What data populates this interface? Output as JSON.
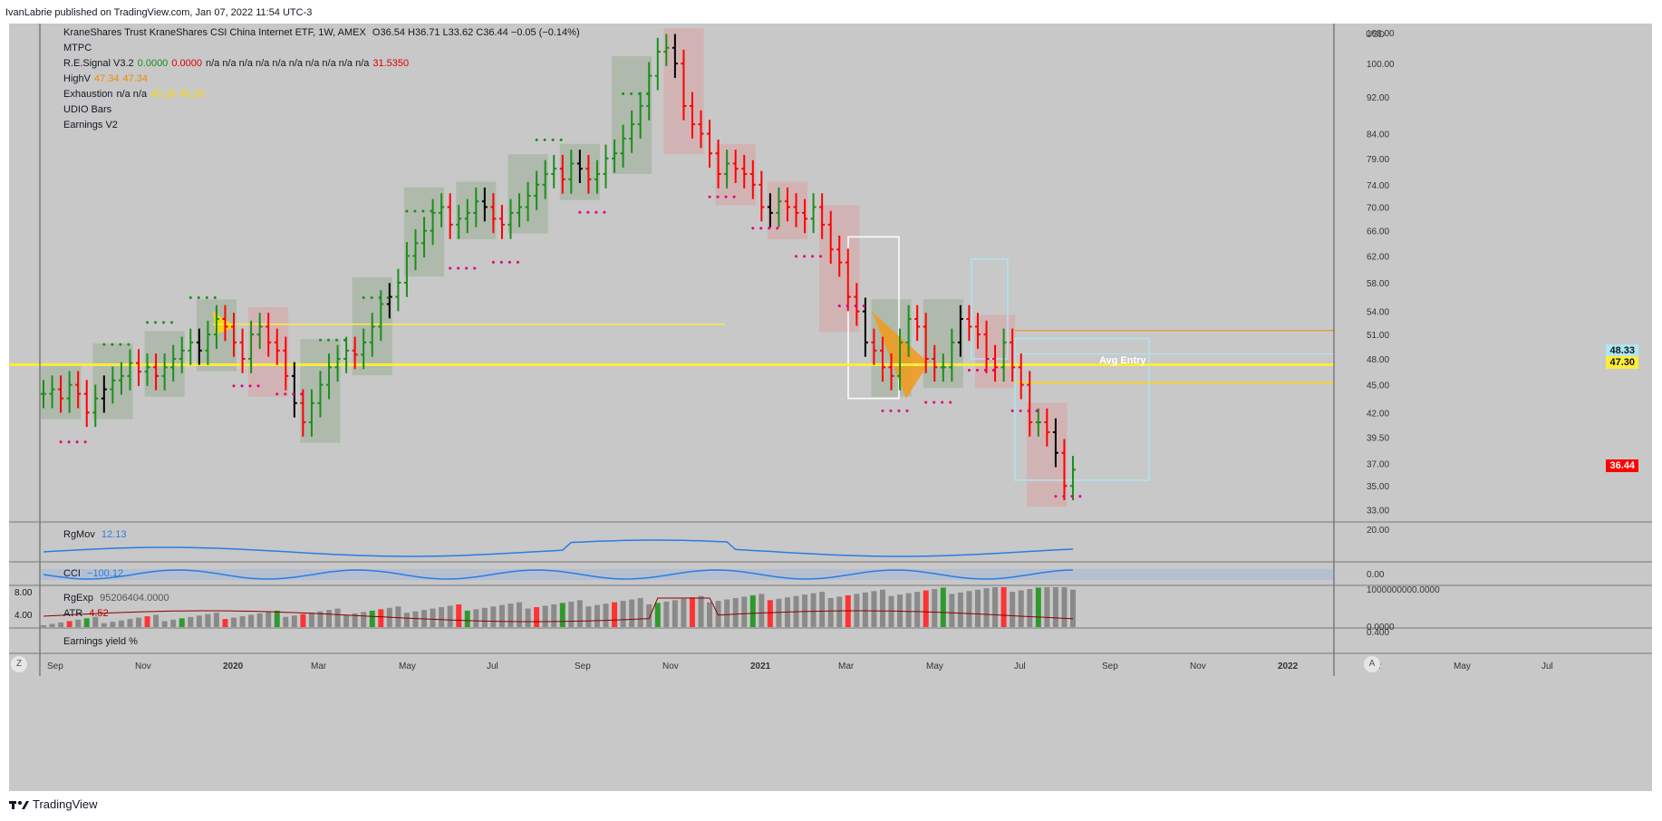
{
  "header": {
    "publisher": "IvanLabrie published on TradingView.com, Jan 07, 2022 11:54 UTC-3"
  },
  "legend": {
    "instrument": "KraneShares Trust KraneShares CSI China Internet ETF, 1W, AMEX",
    "ohlc": "O36.54  H36.71  L33.62  C36.44  −0.05 (−0.14%)",
    "indicators": [
      {
        "name": "MTPC",
        "values": []
      },
      {
        "name": "R.E.Signal V3.2",
        "values": [
          {
            "text": "0.0000",
            "color": "#1a8f1a"
          },
          {
            "text": "0.0000",
            "color": "#e00000"
          },
          {
            "text": "n/a  n/a  n/a  n/a  n/a  n/a  n/a  n/a  n/a  n/a",
            "color": "#131722"
          },
          {
            "text": "31.5350",
            "color": "#e00000"
          }
        ]
      },
      {
        "name": "HighV",
        "values": [
          {
            "text": "47.34",
            "color": "#f28a00"
          },
          {
            "text": "47.34",
            "color": "#f28a00"
          }
        ]
      },
      {
        "name": "Exhaustion",
        "values": [
          {
            "text": "n/a  n/a",
            "color": "#131722"
          },
          {
            "text": "45.26",
            "color": "#ffd800"
          },
          {
            "text": "45.26",
            "color": "#ffd800"
          }
        ]
      },
      {
        "name": "UDIO Bars",
        "values": []
      },
      {
        "name": "Earnings V2",
        "values": []
      }
    ]
  },
  "panes": {
    "rgmov": {
      "label": "RgMov",
      "value": "12.13",
      "axis": "20.00"
    },
    "cci": {
      "label": "CCI",
      "value": "−100.12",
      "axis": "0.00"
    },
    "rgexp": {
      "label": "RgExp",
      "value": "95206404.0000",
      "axis_top": "1000000000.0000",
      "axis_bottom": "0.0000",
      "left_top": "8.00",
      "left_bottom": "4.00",
      "axis_extra": "0.400"
    },
    "atr": {
      "label": "ATR",
      "value": "4.52"
    },
    "earnings": {
      "label": "Earnings yield %"
    }
  },
  "price_tags": {
    "currency": "USD",
    "last": "36.44",
    "avg_entry": "47.30",
    "upper": "48.33",
    "avg_entry_label": "Avg Entry"
  },
  "buttons": {
    "zoom": "Z",
    "auto": "A"
  },
  "footer": {
    "brand": "TradingView"
  },
  "chart_data": {
    "type": "ohlc",
    "interval": "1W",
    "price_axis": {
      "ticks": [
        "108.00",
        "100.00",
        "92.00",
        "84.00",
        "79.00",
        "74.00",
        "70.00",
        "66.00",
        "62.00",
        "58.00",
        "54.00",
        "51.00",
        "48.00",
        "45.00",
        "42.00",
        "39.50",
        "37.00",
        "35.00",
        "33.00"
      ],
      "scale": "log"
    },
    "time_axis": {
      "ticks": [
        "Sep",
        "Nov",
        "2020",
        "Mar",
        "May",
        "Jul",
        "Sep",
        "Nov",
        "2021",
        "Mar",
        "May",
        "Jul",
        "Sep",
        "Nov",
        "2022",
        "Mar",
        "May",
        "Jul"
      ]
    },
    "close_series": [
      44,
      44.5,
      43.5,
      45,
      44,
      42,
      43.5,
      44.5,
      45.5,
      46,
      47.5,
      46.5,
      47,
      46,
      47,
      48,
      49,
      50,
      49,
      51,
      53,
      52,
      50,
      48,
      51,
      52,
      50,
      49,
      46,
      43,
      41,
      43,
      45,
      47,
      48,
      49,
      48.5,
      50,
      52,
      55,
      56,
      58,
      62,
      64,
      66,
      69,
      70,
      67,
      68,
      69,
      71,
      70,
      68,
      67,
      69,
      70,
      72,
      74,
      76,
      77,
      75,
      78,
      77,
      75,
      76,
      79,
      80,
      83,
      86,
      90,
      97,
      103,
      104,
      100,
      90,
      86,
      84,
      80,
      76,
      78,
      77,
      76,
      74,
      70,
      69,
      71,
      70,
      69,
      68,
      70,
      67,
      63,
      61,
      56,
      54,
      50,
      49,
      47,
      46,
      50,
      53,
      52,
      48,
      47,
      47,
      50,
      53,
      52,
      51,
      48,
      47,
      50,
      47,
      45,
      41,
      41,
      40,
      38,
      35,
      36.44
    ],
    "horizontal_levels": [
      {
        "name": "avg-entry",
        "value": 47.3
      },
      {
        "name": "upper-level",
        "value": 48.33
      },
      {
        "name": "exhaustion",
        "value": 45.26
      }
    ]
  }
}
